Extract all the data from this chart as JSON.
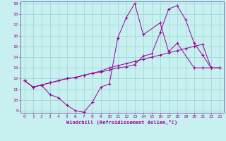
{
  "xlabel": "Windchill (Refroidissement éolien,°C)",
  "bg_color": "#c8f0f0",
  "grid_color": "#a0d8d8",
  "line_color": "#990099",
  "spine_color": "#7777aa",
  "xlim": [
    -0.5,
    23.5
  ],
  "ylim": [
    8.8,
    19.2
  ],
  "xticks": [
    0,
    1,
    2,
    3,
    4,
    5,
    6,
    7,
    8,
    9,
    10,
    11,
    12,
    13,
    14,
    15,
    16,
    17,
    18,
    19,
    20,
    21,
    22,
    23
  ],
  "yticks": [
    9,
    10,
    11,
    12,
    13,
    14,
    15,
    16,
    17,
    18,
    19
  ],
  "series_x": [
    [
      0,
      1,
      2,
      3,
      4,
      5,
      6,
      7,
      8,
      9,
      10,
      11,
      12,
      13,
      14,
      16,
      17,
      18,
      20,
      21,
      22
    ],
    [
      0,
      1,
      2,
      3,
      4,
      5,
      6,
      7,
      8,
      9,
      10,
      11,
      12,
      13,
      14,
      15,
      16,
      17,
      18,
      19,
      20,
      21,
      22,
      23
    ],
    [
      0,
      1,
      2,
      3,
      4,
      5,
      6,
      7,
      8,
      9,
      10,
      11,
      12,
      13,
      14,
      15,
      16,
      17,
      18,
      19,
      20,
      21,
      22,
      23
    ]
  ],
  "series_y": [
    [
      11.8,
      11.2,
      11.4,
      10.5,
      10.2,
      9.5,
      9.0,
      8.85,
      9.8,
      11.2,
      11.5,
      15.8,
      17.7,
      19.0,
      16.1,
      17.2,
      14.5,
      15.3,
      13.0,
      13.0,
      13.0
    ],
    [
      11.8,
      11.2,
      11.4,
      11.6,
      11.8,
      12.0,
      12.1,
      12.3,
      12.5,
      12.7,
      13.0,
      13.2,
      13.4,
      13.6,
      13.8,
      14.0,
      14.2,
      14.4,
      14.6,
      14.8,
      15.0,
      15.2,
      13.0,
      13.0
    ],
    [
      11.8,
      11.2,
      11.4,
      11.6,
      11.8,
      12.0,
      12.1,
      12.3,
      12.5,
      12.6,
      12.8,
      13.0,
      13.1,
      13.3,
      14.1,
      14.3,
      16.3,
      18.5,
      18.8,
      17.5,
      15.3,
      14.2,
      13.0,
      13.0
    ]
  ]
}
